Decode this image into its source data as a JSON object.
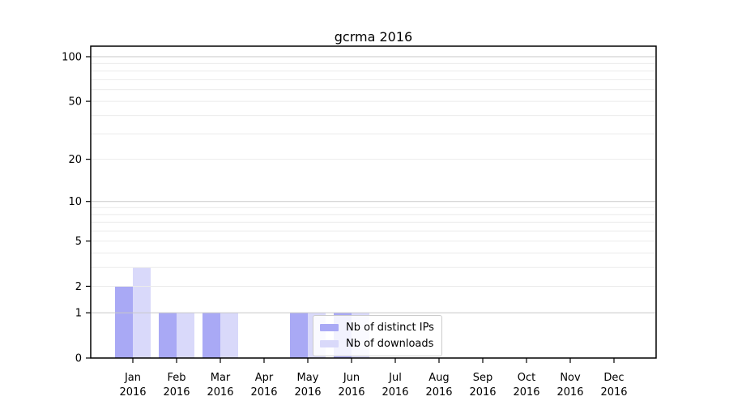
{
  "title": "gcrma 2016",
  "colors": {
    "bar_distinct_ips": "#a9a9f5",
    "bar_downloads": "#d9d9fa",
    "grid_major": "#c9c9c9",
    "grid_minor": "#ebebeb",
    "axis": "#000000",
    "tick_text": "#000000",
    "legend_border": "#cccccc"
  },
  "chart_data": {
    "type": "bar",
    "title": "gcrma 2016",
    "months": [
      "Jan",
      "Feb",
      "Mar",
      "Apr",
      "May",
      "Jun",
      "Jul",
      "Aug",
      "Sep",
      "Oct",
      "Nov",
      "Dec"
    ],
    "year": "2016",
    "categories": [
      "Jan 2016",
      "Feb 2016",
      "Mar 2016",
      "Apr 2016",
      "May 2016",
      "Jun 2016",
      "Jul 2016",
      "Aug 2016",
      "Sep 2016",
      "Oct 2016",
      "Nov 2016",
      "Dec 2016"
    ],
    "series": [
      {
        "name": "Nb of distinct IPs",
        "color": "#a9a9f5",
        "values": [
          2,
          1,
          1,
          0,
          1,
          1,
          0,
          0,
          0,
          0,
          0,
          0
        ]
      },
      {
        "name": "Nb of downloads",
        "color": "#d9d9fa",
        "values": [
          3,
          1,
          1,
          0,
          1,
          1,
          0,
          0,
          0,
          0,
          0,
          0
        ]
      }
    ],
    "yscale": "log1p",
    "ylim": [
      0,
      118
    ],
    "y_ticks": [
      0,
      1,
      2,
      5,
      10,
      20,
      50,
      100
    ],
    "y_gridlines_major": [
      1,
      10,
      100
    ],
    "y_gridlines_minor": [
      2,
      3,
      4,
      5,
      6,
      7,
      8,
      9,
      20,
      30,
      40,
      50,
      60,
      70,
      80,
      90
    ],
    "grid": true,
    "legend_position": "inside lower center"
  }
}
